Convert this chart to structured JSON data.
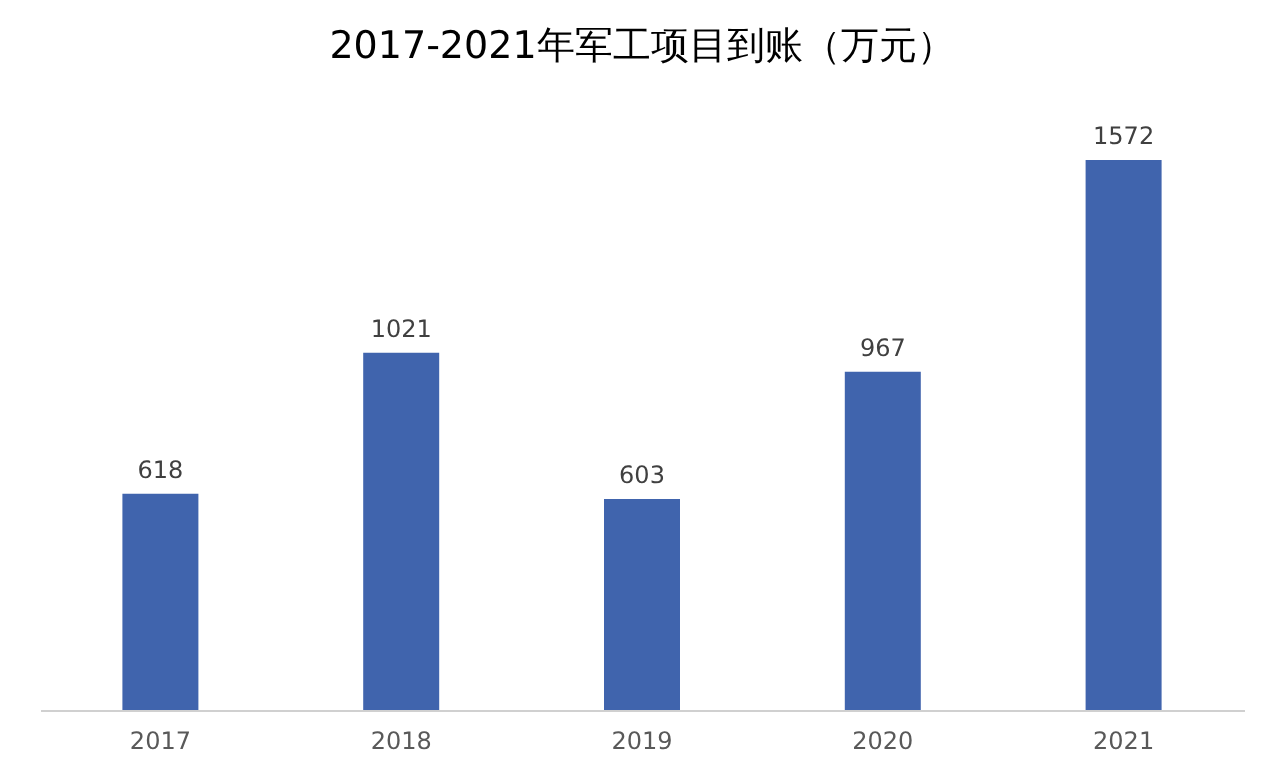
{
  "chart_data": {
    "type": "bar",
    "title": "2017-2021年军工项目到账（万元）",
    "categories": [
      "2017",
      "2018",
      "2019",
      "2020",
      "2021"
    ],
    "values": [
      618,
      1021,
      603,
      967,
      1572
    ],
    "color": "#4064ad",
    "data_labels": true
  }
}
